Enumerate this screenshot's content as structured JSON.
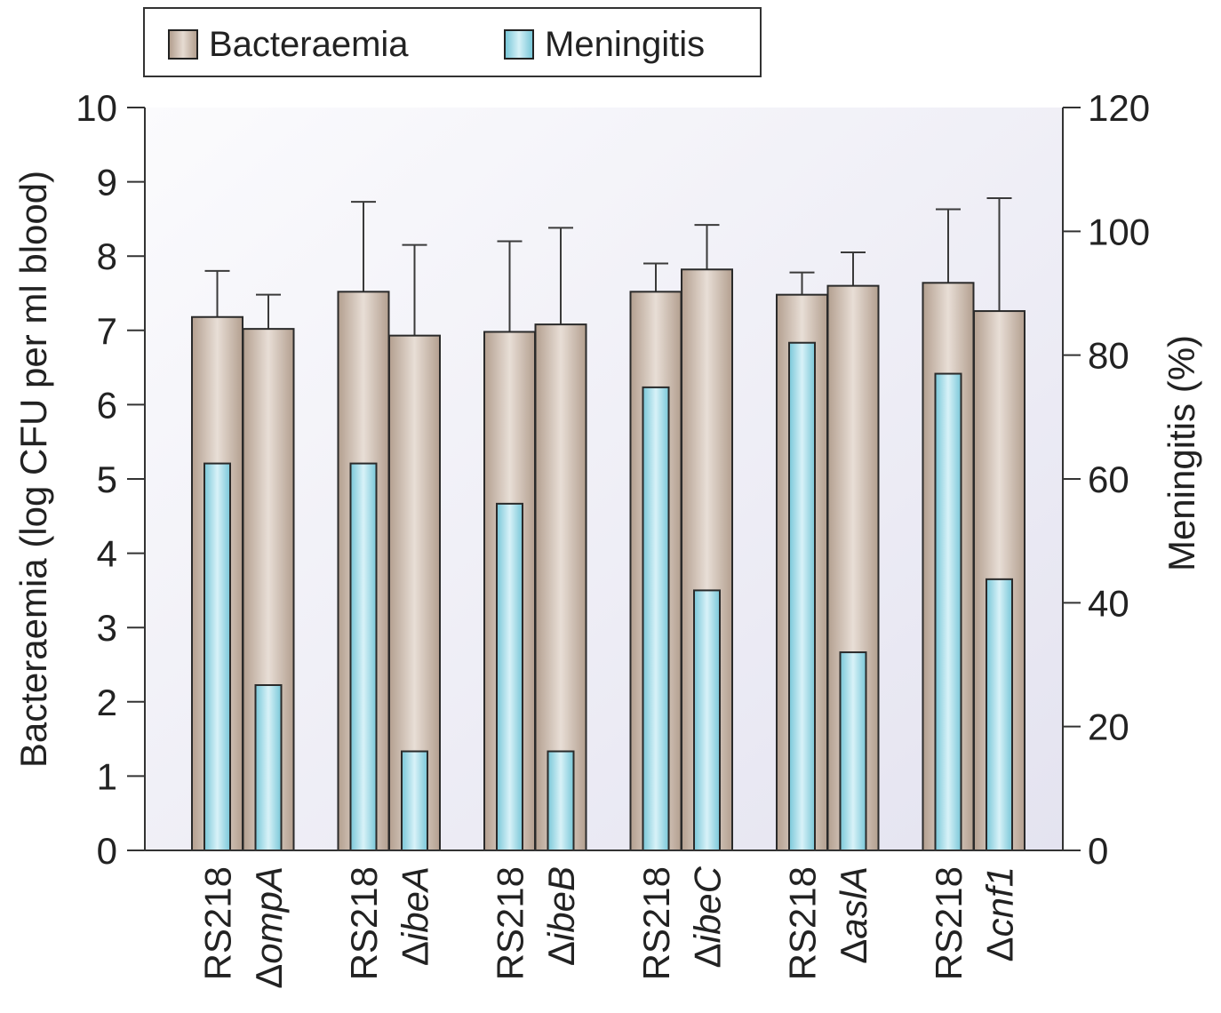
{
  "chart_data": {
    "type": "bar",
    "legend": {
      "placement": "top",
      "entries": [
        {
          "label": "Bacteraemia",
          "color": "#c8b8aa"
        },
        {
          "label": "Meningitis",
          "color": "#a9dfeb"
        }
      ]
    },
    "y_left": {
      "label": "Bacteraemia (log CFU per ml blood)",
      "range": [
        0,
        10
      ],
      "ticks": [
        "0",
        "1",
        "2",
        "3",
        "4",
        "5",
        "6",
        "7",
        "8",
        "9",
        "10"
      ]
    },
    "y_right": {
      "label": "Meningitis (%)",
      "range": [
        0,
        120
      ],
      "ticks": [
        "0",
        "20",
        "40",
        "60",
        "80",
        "100",
        "120"
      ]
    },
    "groups": [
      {
        "bars": [
          {
            "label": "RS218",
            "delta": false,
            "bacteraemia": 7.18,
            "error_upper": 7.8,
            "meningitis": 62.5
          },
          {
            "label": "ompA",
            "delta": true,
            "bacteraemia": 7.02,
            "error_upper": 7.48,
            "meningitis": 26.7
          }
        ]
      },
      {
        "bars": [
          {
            "label": "RS218",
            "delta": false,
            "bacteraemia": 7.52,
            "error_upper": 8.73,
            "meningitis": 62.5
          },
          {
            "label": "ibeA",
            "delta": true,
            "bacteraemia": 6.93,
            "error_upper": 8.15,
            "meningitis": 16.0
          }
        ]
      },
      {
        "bars": [
          {
            "label": "RS218",
            "delta": false,
            "bacteraemia": 6.98,
            "error_upper": 8.2,
            "meningitis": 56.0
          },
          {
            "label": "ibeB",
            "delta": true,
            "bacteraemia": 7.08,
            "error_upper": 8.38,
            "meningitis": 16.0
          }
        ]
      },
      {
        "bars": [
          {
            "label": "RS218",
            "delta": false,
            "bacteraemia": 7.52,
            "error_upper": 7.9,
            "meningitis": 74.8
          },
          {
            "label": "ibeC",
            "delta": true,
            "bacteraemia": 7.82,
            "error_upper": 8.42,
            "meningitis": 42.0
          }
        ]
      },
      {
        "bars": [
          {
            "label": "RS218",
            "delta": false,
            "bacteraemia": 7.48,
            "error_upper": 7.78,
            "meningitis": 82.0
          },
          {
            "label": "aslA",
            "delta": true,
            "bacteraemia": 7.6,
            "error_upper": 8.05,
            "meningitis": 32.0
          }
        ]
      },
      {
        "bars": [
          {
            "label": "RS218",
            "delta": false,
            "bacteraemia": 7.64,
            "error_upper": 8.63,
            "meningitis": 77.0
          },
          {
            "label": "cnf1",
            "delta": true,
            "bacteraemia": 7.26,
            "error_upper": 8.78,
            "meningitis": 43.8
          }
        ]
      }
    ],
    "delta_symbol": "Δ",
    "grid": false
  }
}
